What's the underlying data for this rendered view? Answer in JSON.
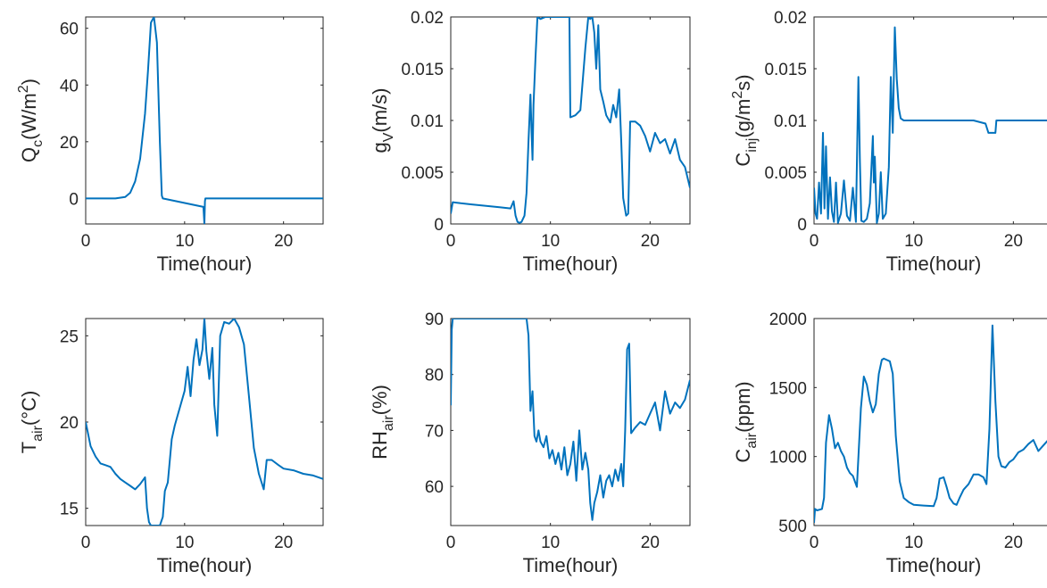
{
  "colors": {
    "line": "#0072BD",
    "axis": "#262626",
    "background": "#ffffff"
  },
  "chart_data": [
    {
      "type": "line",
      "id": "qc",
      "xlabel": "Time(hour)",
      "ylabel": {
        "main": "Q",
        "sub": "c",
        "tail": "(W/m",
        "sup": "2",
        "end": ")"
      },
      "xlim": [
        0,
        24
      ],
      "ylim": [
        -9,
        64
      ],
      "xticks": [
        0,
        10,
        20
      ],
      "yticks": [
        0,
        20,
        40,
        60
      ],
      "grid": false,
      "series": [
        {
          "x": [
            0,
            3,
            4,
            4.5,
            5,
            5.5,
            6,
            6.3,
            6.6,
            6.9,
            7.2,
            7.5,
            7.7,
            7.8,
            11.9,
            12.0,
            12.05,
            12.1,
            24
          ],
          "y": [
            0,
            0,
            0.5,
            2,
            6,
            14,
            30,
            45,
            62,
            64,
            55,
            20,
            1,
            0,
            -3,
            -9,
            -1,
            0,
            0
          ]
        }
      ]
    },
    {
      "type": "line",
      "id": "gv",
      "xlabel": "Time(hour)",
      "ylabel": {
        "main": "g",
        "sub": "V",
        "tail": "(m/s)",
        "sup": "",
        "end": ""
      },
      "xlim": [
        0,
        24
      ],
      "ylim": [
        0,
        0.02
      ],
      "xticks": [
        0,
        10,
        20
      ],
      "yticks": [
        0,
        0.005,
        0.01,
        0.015,
        0.02
      ],
      "ytick_labels": [
        "0",
        "0.005",
        "0.01",
        "0.015",
        "0.02"
      ],
      "grid": false,
      "series": [
        {
          "x": [
            0,
            0.2,
            1,
            2,
            3,
            4,
            5,
            6,
            6.3,
            6.5,
            6.7,
            6.9,
            7.1,
            7.4,
            7.6,
            7.8,
            8.0,
            8.1,
            8.2,
            8.3,
            8.5,
            8.7,
            9,
            9.5,
            10,
            11,
            11.9,
            12.0,
            12.5,
            13,
            13.5,
            13.8,
            14,
            14.2,
            14.4,
            14.6,
            14.8,
            15,
            15.3,
            15.6,
            16,
            16.3,
            16.6,
            16.9,
            17.1,
            17.3,
            17.6,
            17.8,
            18,
            18.5,
            19,
            19.5,
            20,
            20.5,
            21,
            21.5,
            22,
            22.5,
            23,
            23.5,
            24
          ],
          "y": [
            0.001,
            0.0021,
            0.002,
            0.0019,
            0.0018,
            0.0017,
            0.0016,
            0.0015,
            0.0022,
            0.0008,
            0.0002,
            0.0001,
            0.0002,
            0.0008,
            0.003,
            0.008,
            0.0125,
            0.009,
            0.0062,
            0.0115,
            0.016,
            0.02,
            0.0198,
            0.02,
            0.02,
            0.02,
            0.02,
            0.0103,
            0.0105,
            0.011,
            0.017,
            0.02,
            0.0198,
            0.02,
            0.0185,
            0.015,
            0.0192,
            0.013,
            0.0118,
            0.0105,
            0.0098,
            0.0115,
            0.0103,
            0.013,
            0.008,
            0.0025,
            0.0008,
            0.001,
            0.0099,
            0.0099,
            0.0095,
            0.0085,
            0.007,
            0.0088,
            0.0078,
            0.0082,
            0.0068,
            0.0082,
            0.0062,
            0.0055,
            0.0035
          ]
        }
      ]
    },
    {
      "type": "line",
      "id": "cinj",
      "xlabel": "Time(hour)",
      "ylabel": {
        "main": "C",
        "sub": "inj",
        "tail": "(g/m",
        "sup": "2",
        "end": "s)"
      },
      "xlim": [
        0,
        24
      ],
      "ylim": [
        0,
        0.02
      ],
      "xticks": [
        0,
        10,
        20
      ],
      "yticks": [
        0,
        0.005,
        0.01,
        0.015,
        0.02
      ],
      "ytick_labels": [
        "0",
        "0.005",
        "0.01",
        "0.015",
        "0.02"
      ],
      "grid": false,
      "series": [
        {
          "x": [
            0,
            0.15,
            0.3,
            0.5,
            0.7,
            0.9,
            1.05,
            1.2,
            1.4,
            1.6,
            1.8,
            2.0,
            2.2,
            2.4,
            2.7,
            3.0,
            3.3,
            3.6,
            3.9,
            4.2,
            4.45,
            4.6,
            4.75,
            5.0,
            5.3,
            5.6,
            5.9,
            6.0,
            6.1,
            6.3,
            6.5,
            6.7,
            6.9,
            7.2,
            7.5,
            7.7,
            7.9,
            8.1,
            8.3,
            8.5,
            8.7,
            9.0,
            9.5,
            10,
            12,
            14,
            16,
            17.2,
            17.5,
            18,
            18.2,
            18.3,
            20,
            22,
            24
          ],
          "y": [
            0.0035,
            0.001,
            0.0005,
            0.004,
            0.001,
            0.0088,
            0.0015,
            0.0075,
            0.0005,
            0.0045,
            0.0012,
            0.0002,
            0.004,
            0.0001,
            0.001,
            0.0042,
            0.0008,
            0.0003,
            0.0035,
            0.0002,
            0.0142,
            0.006,
            0.0003,
            0.0002,
            0.0005,
            0.002,
            0.0085,
            0.004,
            0.0065,
            0.0001,
            0.001,
            0.005,
            0.0005,
            0.001,
            0.0055,
            0.0142,
            0.0088,
            0.019,
            0.014,
            0.0112,
            0.0102,
            0.01,
            0.01,
            0.01,
            0.01,
            0.01,
            0.01,
            0.0097,
            0.0088,
            0.0088,
            0.0088,
            0.01,
            0.01,
            0.01,
            0.01
          ]
        }
      ]
    },
    {
      "type": "line",
      "id": "tair",
      "xlabel": "Time(hour)",
      "ylabel": {
        "main": "T",
        "sub": "air",
        "tail": "(°C)",
        "sup": "",
        "end": ""
      },
      "xlim": [
        0,
        24
      ],
      "ylim": [
        14,
        26
      ],
      "xticks": [
        0,
        10,
        20
      ],
      "yticks": [
        15,
        20,
        25
      ],
      "grid": false,
      "series": [
        {
          "x": [
            0,
            0.5,
            1,
            1.5,
            2,
            2.5,
            3,
            3.5,
            4,
            4.5,
            5,
            5.5,
            6,
            6.2,
            6.4,
            6.6,
            7,
            7.5,
            7.8,
            8.0,
            8.3,
            8.7,
            9.0,
            9.5,
            10,
            10.3,
            10.6,
            10.9,
            11.2,
            11.5,
            11.8,
            12.0,
            12.2,
            12.5,
            12.8,
            13.0,
            13.3,
            13.6,
            14.0,
            14.5,
            15,
            15.5,
            16,
            16.5,
            17,
            17.5,
            18,
            18.3,
            18.8,
            19.5,
            20,
            21,
            22,
            23,
            24
          ],
          "y": [
            20,
            18.6,
            18,
            17.6,
            17.5,
            17.4,
            17,
            16.7,
            16.5,
            16.3,
            16.1,
            16.4,
            16.8,
            15,
            14.2,
            14,
            14,
            14,
            14.5,
            16,
            16.5,
            19,
            19.8,
            20.8,
            21.8,
            23.2,
            21.5,
            23.6,
            24.8,
            23.3,
            24.2,
            26,
            24.1,
            22.5,
            24.3,
            21,
            19.2,
            25,
            25.8,
            25.7,
            26,
            25.5,
            24.5,
            21.5,
            18.5,
            17,
            16.1,
            17.8,
            17.8,
            17.5,
            17.3,
            17.2,
            17.0,
            16.9,
            16.7
          ]
        }
      ]
    },
    {
      "type": "line",
      "id": "rhair",
      "xlabel": "Time(hour)",
      "ylabel": {
        "main": "RH",
        "sub": "air",
        "tail": "(%)",
        "sup": "",
        "end": ""
      },
      "xlim": [
        0,
        24
      ],
      "ylim": [
        53,
        90
      ],
      "xticks": [
        0,
        10,
        20
      ],
      "yticks": [
        60,
        70,
        80,
        90
      ],
      "grid": false,
      "series": [
        {
          "x": [
            0,
            0.1,
            0.2,
            1,
            3,
            5,
            7,
            7.6,
            7.8,
            8.0,
            8.2,
            8.4,
            8.6,
            8.8,
            9.0,
            9.3,
            9.6,
            9.9,
            10.2,
            10.5,
            10.8,
            11.1,
            11.4,
            11.7,
            12.0,
            12.3,
            12.6,
            12.9,
            13.2,
            13.5,
            13.8,
            14.0,
            14.2,
            14.4,
            14.7,
            15.0,
            15.3,
            15.6,
            15.9,
            16.2,
            16.5,
            16.8,
            17.1,
            17.3,
            17.5,
            17.7,
            17.9,
            18.1,
            18.5,
            19,
            19.5,
            20,
            20.5,
            21,
            21.5,
            22,
            22.5,
            23,
            23.5,
            24
          ],
          "y": [
            74.5,
            88,
            90,
            90,
            90,
            90,
            90,
            90,
            87,
            73.5,
            77,
            69,
            68,
            70,
            68,
            67,
            69,
            65,
            66.5,
            64,
            66,
            63,
            67,
            62,
            64,
            68,
            61,
            70,
            63,
            66,
            63,
            57,
            54,
            57,
            59,
            62,
            58,
            61,
            62,
            60,
            63,
            61,
            64,
            60,
            70,
            84.5,
            85.5,
            69.5,
            70.5,
            71.5,
            71,
            73,
            75,
            70,
            77,
            73,
            75,
            74,
            75.5,
            79
          ]
        }
      ]
    },
    {
      "type": "line",
      "id": "cair",
      "xlabel": "Time(hour)",
      "ylabel": {
        "main": "C",
        "sub": "air",
        "tail": "(ppm)",
        "sup": "",
        "end": ""
      },
      "xlim": [
        0,
        24
      ],
      "ylim": [
        500,
        2000
      ],
      "xticks": [
        0,
        10,
        20
      ],
      "yticks": [
        500,
        1000,
        1500,
        2000
      ],
      "grid": false,
      "series": [
        {
          "x": [
            0,
            0.1,
            0.3,
            0.8,
            1.0,
            1.2,
            1.5,
            1.8,
            2.1,
            2.4,
            2.7,
            3.0,
            3.3,
            3.6,
            3.9,
            4.3,
            4.7,
            5.0,
            5.3,
            5.6,
            5.9,
            6.2,
            6.5,
            6.8,
            7.0,
            7.3,
            7.6,
            7.9,
            8.2,
            8.6,
            9.0,
            9.5,
            10,
            11,
            12,
            12.3,
            12.6,
            13,
            13.3,
            13.6,
            14,
            14.3,
            14.6,
            15,
            15.5,
            16,
            16.5,
            17,
            17.3,
            17.6,
            17.9,
            18.2,
            18.5,
            18.8,
            19.2,
            19.6,
            20,
            20.5,
            21,
            21.5,
            22,
            22.5,
            23,
            23.5,
            24
          ],
          "y": [
            520,
            620,
            610,
            620,
            700,
            1100,
            1300,
            1200,
            1060,
            1100,
            1040,
            1000,
            920,
            880,
            860,
            780,
            1350,
            1580,
            1520,
            1400,
            1320,
            1380,
            1600,
            1700,
            1710,
            1700,
            1690,
            1600,
            1150,
            820,
            700,
            670,
            650,
            645,
            640,
            700,
            840,
            850,
            780,
            700,
            660,
            650,
            700,
            760,
            800,
            870,
            870,
            850,
            800,
            1200,
            1950,
            1400,
            1000,
            930,
            920,
            960,
            980,
            1030,
            1050,
            1090,
            1120,
            1040,
            1080,
            1120,
            1190
          ]
        }
      ]
    }
  ]
}
